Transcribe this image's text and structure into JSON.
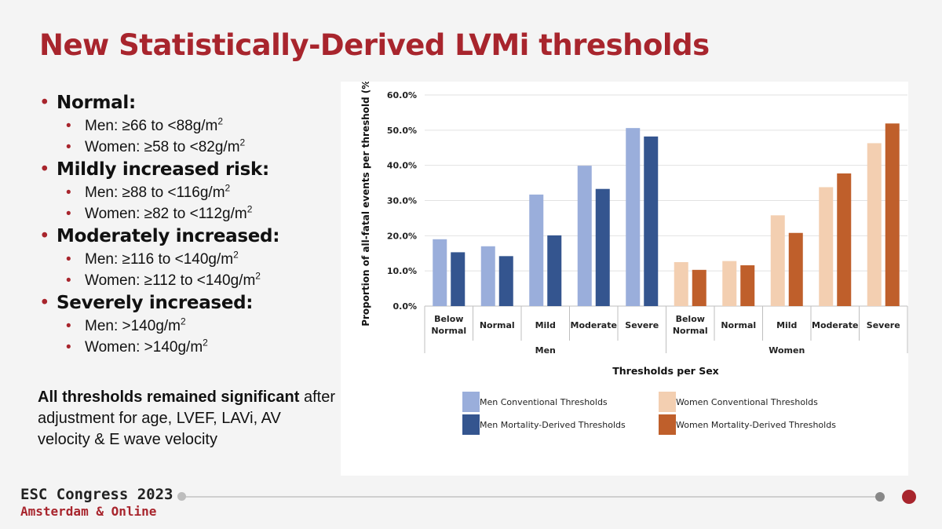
{
  "slide": {
    "title": "New Statistically-Derived LVMi thresholds",
    "bullets": [
      {
        "label": "Normal:",
        "subs": [
          {
            "text": "Men: ≥66 to <88g/m",
            "sup": "2"
          },
          {
            "text": "Women: ≥58 to <82g/m",
            "sup": "2"
          }
        ]
      },
      {
        "label": "Mildly increased risk:",
        "subs": [
          {
            "text": "Men: ≥88 to <116g/m",
            "sup": "2"
          },
          {
            "text": "Women: ≥82 to <112g/m",
            "sup": "2"
          }
        ]
      },
      {
        "label": "Moderately increased:",
        "subs": [
          {
            "text": "Men: ≥116 to <140g/m",
            "sup": "2"
          },
          {
            "text": "Women: ≥112 to <140g/m",
            "sup": "2"
          }
        ]
      },
      {
        "label": "Severely increased:",
        "subs": [
          {
            "text": "Men: >140g/m",
            "sup": "2"
          },
          {
            "text": "Women: >140g/m",
            "sup": "2"
          }
        ]
      }
    ],
    "note": {
      "bold": "All thresholds remained significant",
      "rest": " after adjustment for age, LVEF, LAVi, AV velocity & E wave velocity"
    }
  },
  "footer": {
    "line1": "ESC Congress 2023",
    "line2": "Amsterdam & Online"
  },
  "colors": {
    "brand_red": "#a8252d",
    "men_conventional": "#9aaedb",
    "men_mortality": "#34558f",
    "women_conventional": "#f3cfb1",
    "women_mortality": "#bf5f2b"
  },
  "chart_data": {
    "type": "bar",
    "xlabel": "Thresholds per Sex",
    "ylabel": "Proportion of all-fatal events per threshold (%)",
    "ylim": [
      0,
      60
    ],
    "yticks": [
      "0.0%",
      "10.0%",
      "20.0%",
      "30.0%",
      "40.0%",
      "50.0%",
      "60.0%"
    ],
    "grid": true,
    "legend_position": "bottom",
    "groups": [
      {
        "name": "Men",
        "categories": [
          [
            "Below",
            "Normal"
          ],
          [
            "Normal"
          ],
          [
            "Mild"
          ],
          [
            "Moderate"
          ],
          [
            "Severe"
          ]
        ],
        "series": [
          {
            "name": "Men Conventional Thresholds",
            "color": "#9aaedb",
            "values": [
              19.0,
              17.0,
              31.7,
              39.9,
              50.6
            ]
          },
          {
            "name": "Men Mortality-Derived Thresholds",
            "color": "#34558f",
            "values": [
              15.3,
              14.2,
              20.1,
              33.3,
              48.2
            ]
          }
        ]
      },
      {
        "name": "Women",
        "categories": [
          [
            "Below",
            "Normal"
          ],
          [
            "Normal"
          ],
          [
            "Mild"
          ],
          [
            "Moderate"
          ],
          [
            "Severe"
          ]
        ],
        "series": [
          {
            "name": "Women Conventional Thresholds",
            "color": "#f3cfb1",
            "values": [
              12.5,
              12.8,
              25.8,
              33.8,
              46.3
            ]
          },
          {
            "name": "Women Mortality-Derived Thresholds",
            "color": "#bf5f2b",
            "values": [
              10.3,
              11.6,
              20.8,
              37.7,
              51.9
            ]
          }
        ]
      }
    ]
  }
}
